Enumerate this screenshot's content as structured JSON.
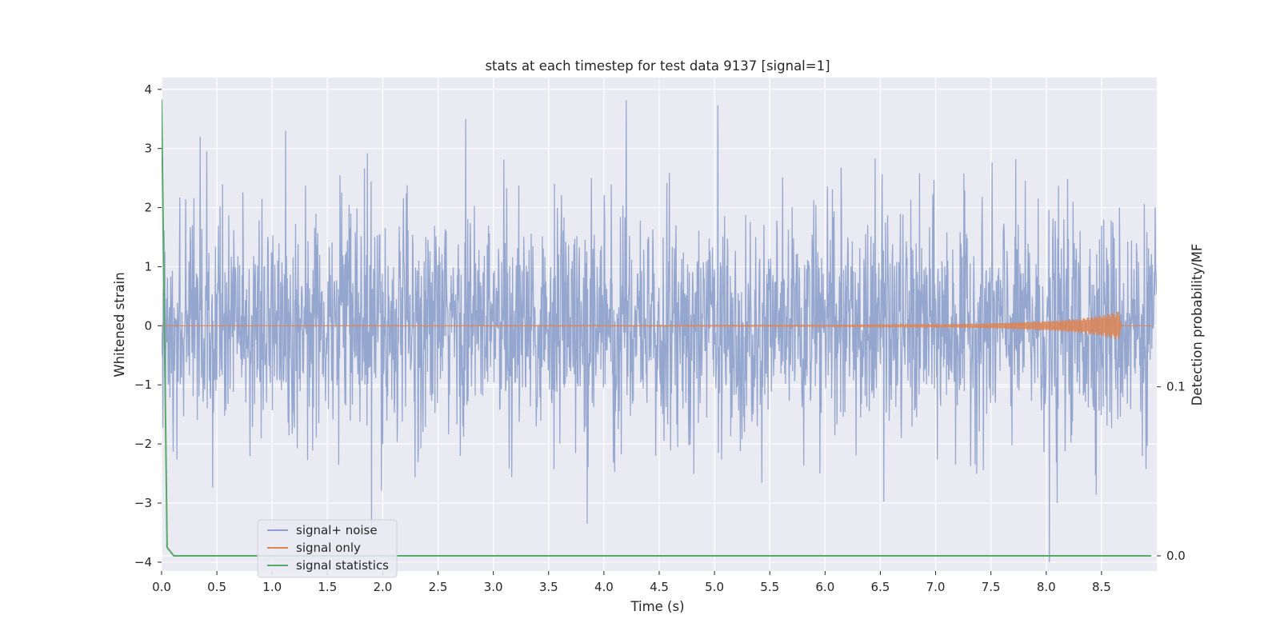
{
  "chart_data": {
    "type": "line",
    "title": "stats at each timestep for test data 9137 [signal=1]",
    "xlabel": "Time (s)",
    "ylabel": "Whitened strain",
    "y2label": "Detection probability/MF",
    "xlim": [
      0,
      9.0
    ],
    "ylim": [
      -4.15,
      4.2
    ],
    "y2lim": [
      -0.009,
      0.283
    ],
    "xticks": [
      "0.0",
      "0.5",
      "1.0",
      "1.5",
      "2.0",
      "2.5",
      "3.0",
      "3.5",
      "4.0",
      "4.5",
      "5.0",
      "5.5",
      "6.0",
      "6.5",
      "7.0",
      "7.5",
      "8.0",
      "8.5"
    ],
    "yticks": [
      "4",
      "3",
      "2",
      "1",
      "0",
      "−1",
      "−2",
      "−3",
      "−4"
    ],
    "y2ticks": [
      "0.1",
      "0.0"
    ],
    "grid": true,
    "legend_position": "lower-left",
    "colors": {
      "background": "#eaeaf2",
      "grid": "#ffffff",
      "signal_noise": "#8da0cb",
      "signal_only": "#dd8452",
      "signal_stats": "#55a868"
    },
    "series": [
      {
        "name": "signal+ noise",
        "axis": "left",
        "description": "whitened noisy strain, roughly Gaussian with sd ~0.9, peaks approx",
        "peaks": [
          [
            0.35,
            3.2
          ],
          [
            0.41,
            2.95
          ],
          [
            1.12,
            3.3
          ],
          [
            2.75,
            3.5
          ],
          [
            4.2,
            3.82
          ],
          [
            5.03,
            3.73
          ],
          [
            1.9,
            -3.4
          ],
          [
            3.85,
            -3.35
          ],
          [
            8.03,
            -4.0
          ],
          [
            8.1,
            -3.0
          ]
        ]
      },
      {
        "name": "signal only",
        "axis": "left",
        "description": "chirp signal, amplitude grows toward merger near t=8.68 s",
        "points": [
          [
            0.0,
            0.0
          ],
          [
            6.0,
            0.01
          ],
          [
            7.0,
            0.02
          ],
          [
            7.5,
            0.04
          ],
          [
            8.0,
            0.08
          ],
          [
            8.3,
            0.12
          ],
          [
            8.5,
            0.18
          ],
          [
            8.6,
            0.22
          ],
          [
            8.66,
            0.25
          ],
          [
            8.68,
            0.0
          ]
        ]
      },
      {
        "name": "signal statistics",
        "axis": "right",
        "x": [
          0.0,
          0.05,
          0.11,
          8.95
        ],
        "values": [
          0.27,
          0.005,
          0.0,
          0.0
        ]
      }
    ]
  }
}
